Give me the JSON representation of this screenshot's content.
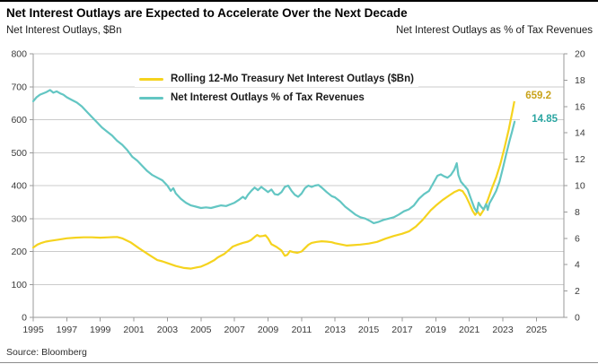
{
  "header": {
    "title": "Net Interest Outlays are Expected to Accelerate Over the Next Decade"
  },
  "footer": {
    "source": "Source: Bloomberg"
  },
  "colors": {
    "outlays_line": "#F5D31E",
    "outlays_value": "#C9A31B",
    "pct_line": "#63C6C3",
    "pct_value": "#2AA5A1",
    "grid": "#CBCBCB",
    "axis": "#9A9A9A",
    "tick_text": "#3A3A3A"
  },
  "chart_data": {
    "type": "line",
    "title": "Net Interest Outlays are Expected to Accelerate Over the Next Decade",
    "x_min": 1995,
    "x_tick_years": [
      1995,
      1997,
      1999,
      2001,
      2003,
      2005,
      2007,
      2009,
      2011,
      2013,
      2015,
      2017,
      2019,
      2021,
      2023,
      2025
    ],
    "left_axis": {
      "title": "Net Interest Outlays, $Bn",
      "min": 0,
      "max": 800,
      "step": 100,
      "ticks": [
        800,
        700,
        600,
        500,
        400,
        300,
        200,
        100,
        0
      ]
    },
    "right_axis": {
      "title": "Net Interest Outlays as % of Tax Revenues",
      "min": 0,
      "max": 20,
      "step": 2,
      "ticks": [
        20,
        18,
        16,
        14,
        12,
        10,
        8,
        6,
        4,
        2,
        0
      ]
    },
    "legend_position": "top-center",
    "grid": true,
    "series": [
      {
        "name": "Rolling 12-Mo Treasury Net Interest Outlays ($Bn)",
        "axis": "left",
        "color": "#F5D31E",
        "last_value": 659.2,
        "last_value_label": "659.2",
        "points": [
          [
            1995.0,
            212
          ],
          [
            1995.25,
            221
          ],
          [
            1995.5,
            226
          ],
          [
            1995.75,
            230
          ],
          [
            1996.0,
            232
          ],
          [
            1996.5,
            236
          ],
          [
            1997.0,
            240
          ],
          [
            1997.5,
            242
          ],
          [
            1998.0,
            243
          ],
          [
            1998.5,
            243
          ],
          [
            1999.0,
            242
          ],
          [
            1999.5,
            243
          ],
          [
            2000.0,
            244
          ],
          [
            2000.3,
            240
          ],
          [
            2000.8,
            228
          ],
          [
            2001.3,
            210
          ],
          [
            2001.9,
            190
          ],
          [
            2002.4,
            174
          ],
          [
            2002.7,
            170
          ],
          [
            2003.0,
            165
          ],
          [
            2003.5,
            156
          ],
          [
            2004.0,
            150
          ],
          [
            2004.4,
            148
          ],
          [
            2004.8,
            152
          ],
          [
            2005.0,
            154
          ],
          [
            2005.4,
            163
          ],
          [
            2005.8,
            174
          ],
          [
            2006.0,
            182
          ],
          [
            2006.4,
            193
          ],
          [
            2006.7,
            206
          ],
          [
            2006.9,
            215
          ],
          [
            2007.2,
            221
          ],
          [
            2007.5,
            226
          ],
          [
            2007.8,
            230
          ],
          [
            2008.0,
            235
          ],
          [
            2008.2,
            244
          ],
          [
            2008.35,
            250
          ],
          [
            2008.5,
            246
          ],
          [
            2008.7,
            247
          ],
          [
            2008.85,
            249
          ],
          [
            2009.0,
            240
          ],
          [
            2009.2,
            222
          ],
          [
            2009.5,
            214
          ],
          [
            2009.8,
            203
          ],
          [
            2010.0,
            187
          ],
          [
            2010.15,
            190
          ],
          [
            2010.3,
            201
          ],
          [
            2010.5,
            198
          ],
          [
            2010.75,
            196
          ],
          [
            2011.0,
            200
          ],
          [
            2011.2,
            210
          ],
          [
            2011.4,
            220
          ],
          [
            2011.6,
            226
          ],
          [
            2011.9,
            229
          ],
          [
            2012.2,
            231
          ],
          [
            2012.5,
            230
          ],
          [
            2012.8,
            228
          ],
          [
            2013.0,
            225
          ],
          [
            2013.4,
            221
          ],
          [
            2013.7,
            218
          ],
          [
            2014.0,
            219
          ],
          [
            2014.5,
            221
          ],
          [
            2015.0,
            224
          ],
          [
            2015.5,
            229
          ],
          [
            2016.0,
            239
          ],
          [
            2016.5,
            247
          ],
          [
            2017.0,
            254
          ],
          [
            2017.4,
            261
          ],
          [
            2017.8,
            275
          ],
          [
            2018.2,
            295
          ],
          [
            2018.7,
            325
          ],
          [
            2019.0,
            339
          ],
          [
            2019.4,
            356
          ],
          [
            2019.8,
            370
          ],
          [
            2020.1,
            380
          ],
          [
            2020.4,
            387
          ],
          [
            2020.6,
            383
          ],
          [
            2020.8,
            368
          ],
          [
            2021.0,
            346
          ],
          [
            2021.2,
            323
          ],
          [
            2021.35,
            311
          ],
          [
            2021.5,
            321
          ],
          [
            2021.65,
            310
          ],
          [
            2021.85,
            326
          ],
          [
            2022.1,
            356
          ],
          [
            2022.35,
            392
          ],
          [
            2022.6,
            425
          ],
          [
            2022.85,
            465
          ],
          [
            2023.1,
            515
          ],
          [
            2023.35,
            570
          ],
          [
            2023.55,
            620
          ],
          [
            2023.7,
            659.2
          ]
        ]
      },
      {
        "name": "Net Interest Outlays % of Tax Revenues",
        "axis": "right",
        "color": "#63C6C3",
        "last_value": 14.85,
        "last_value_label": "14.85",
        "points": [
          [
            1995.0,
            16.4
          ],
          [
            1995.2,
            16.7
          ],
          [
            1995.4,
            16.9
          ],
          [
            1995.6,
            17.0
          ],
          [
            1995.8,
            17.1
          ],
          [
            1996.0,
            17.25
          ],
          [
            1996.2,
            17.05
          ],
          [
            1996.4,
            17.15
          ],
          [
            1996.6,
            17.0
          ],
          [
            1996.8,
            16.9
          ],
          [
            1997.0,
            16.7
          ],
          [
            1997.3,
            16.5
          ],
          [
            1997.6,
            16.3
          ],
          [
            1997.9,
            16.0
          ],
          [
            1998.2,
            15.6
          ],
          [
            1998.5,
            15.2
          ],
          [
            1998.8,
            14.8
          ],
          [
            1999.1,
            14.4
          ],
          [
            1999.4,
            14.1
          ],
          [
            1999.7,
            13.8
          ],
          [
            2000.0,
            13.4
          ],
          [
            2000.3,
            13.1
          ],
          [
            2000.6,
            12.7
          ],
          [
            2000.9,
            12.2
          ],
          [
            2001.2,
            11.9
          ],
          [
            2001.5,
            11.5
          ],
          [
            2001.8,
            11.1
          ],
          [
            2002.1,
            10.8
          ],
          [
            2002.4,
            10.6
          ],
          [
            2002.7,
            10.4
          ],
          [
            2003.0,
            10.0
          ],
          [
            2003.2,
            9.6
          ],
          [
            2003.35,
            9.8
          ],
          [
            2003.5,
            9.4
          ],
          [
            2003.8,
            9.0
          ],
          [
            2004.1,
            8.7
          ],
          [
            2004.4,
            8.5
          ],
          [
            2004.7,
            8.4
          ],
          [
            2005.0,
            8.3
          ],
          [
            2005.3,
            8.35
          ],
          [
            2005.6,
            8.3
          ],
          [
            2005.9,
            8.4
          ],
          [
            2006.2,
            8.5
          ],
          [
            2006.5,
            8.45
          ],
          [
            2006.8,
            8.6
          ],
          [
            2007.0,
            8.7
          ],
          [
            2007.3,
            8.95
          ],
          [
            2007.5,
            9.15
          ],
          [
            2007.65,
            9.0
          ],
          [
            2007.8,
            9.3
          ],
          [
            2008.0,
            9.6
          ],
          [
            2008.2,
            9.85
          ],
          [
            2008.4,
            9.65
          ],
          [
            2008.6,
            9.9
          ],
          [
            2008.8,
            9.7
          ],
          [
            2009.0,
            9.5
          ],
          [
            2009.2,
            9.7
          ],
          [
            2009.4,
            9.35
          ],
          [
            2009.6,
            9.3
          ],
          [
            2009.8,
            9.5
          ],
          [
            2010.0,
            9.9
          ],
          [
            2010.2,
            10.0
          ],
          [
            2010.4,
            9.6
          ],
          [
            2010.6,
            9.3
          ],
          [
            2010.8,
            9.15
          ],
          [
            2011.0,
            9.4
          ],
          [
            2011.2,
            9.8
          ],
          [
            2011.4,
            10.0
          ],
          [
            2011.6,
            9.9
          ],
          [
            2011.8,
            10.0
          ],
          [
            2012.0,
            10.05
          ],
          [
            2012.2,
            9.85
          ],
          [
            2012.5,
            9.5
          ],
          [
            2012.8,
            9.2
          ],
          [
            2013.0,
            9.1
          ],
          [
            2013.3,
            8.8
          ],
          [
            2013.6,
            8.4
          ],
          [
            2013.9,
            8.1
          ],
          [
            2014.2,
            7.8
          ],
          [
            2014.5,
            7.6
          ],
          [
            2014.8,
            7.5
          ],
          [
            2015.1,
            7.3
          ],
          [
            2015.3,
            7.15
          ],
          [
            2015.6,
            7.25
          ],
          [
            2015.9,
            7.4
          ],
          [
            2016.2,
            7.5
          ],
          [
            2016.5,
            7.6
          ],
          [
            2016.8,
            7.8
          ],
          [
            2017.1,
            8.05
          ],
          [
            2017.4,
            8.2
          ],
          [
            2017.7,
            8.5
          ],
          [
            2018.0,
            9.0
          ],
          [
            2018.3,
            9.35
          ],
          [
            2018.6,
            9.6
          ],
          [
            2018.9,
            10.3
          ],
          [
            2019.1,
            10.75
          ],
          [
            2019.3,
            10.85
          ],
          [
            2019.5,
            10.7
          ],
          [
            2019.7,
            10.6
          ],
          [
            2019.9,
            10.8
          ],
          [
            2020.1,
            11.2
          ],
          [
            2020.25,
            11.7
          ],
          [
            2020.35,
            10.8
          ],
          [
            2020.5,
            10.3
          ],
          [
            2020.7,
            10.0
          ],
          [
            2020.9,
            9.7
          ],
          [
            2021.1,
            9.0
          ],
          [
            2021.3,
            8.3
          ],
          [
            2021.45,
            8.0
          ],
          [
            2021.55,
            8.7
          ],
          [
            2021.7,
            8.4
          ],
          [
            2021.85,
            8.2
          ],
          [
            2022.0,
            8.6
          ],
          [
            2022.1,
            8.15
          ],
          [
            2022.2,
            8.65
          ],
          [
            2022.4,
            9.1
          ],
          [
            2022.6,
            9.6
          ],
          [
            2022.8,
            10.3
          ],
          [
            2023.0,
            11.3
          ],
          [
            2023.2,
            12.4
          ],
          [
            2023.4,
            13.4
          ],
          [
            2023.55,
            14.1
          ],
          [
            2023.7,
            14.85
          ]
        ]
      }
    ]
  }
}
